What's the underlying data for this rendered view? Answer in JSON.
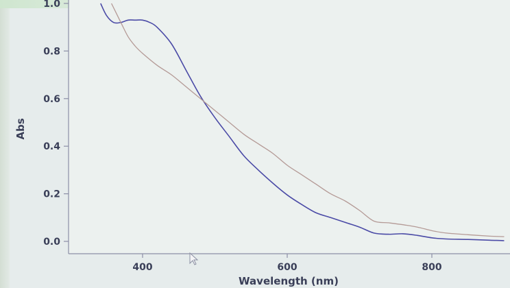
{
  "chart_data": {
    "type": "line",
    "title": "",
    "xlabel": "Wavelength (nm)",
    "ylabel": "Abs",
    "xlim": [
      300,
      900
    ],
    "ylim": [
      0.0,
      1.0
    ],
    "x_ticks": [
      400,
      600,
      800
    ],
    "y_ticks": [
      "0.0",
      "0.2",
      "0.4",
      "0.6",
      "0.8",
      "1.0"
    ],
    "grid": false,
    "legend": "none",
    "series": [
      {
        "color": "#4a4aa6",
        "x": [
          342,
          350,
          360,
          370,
          380,
          390,
          400,
          410,
          420,
          440,
          460,
          480,
          500,
          520,
          540,
          560,
          580,
          600,
          620,
          640,
          660,
          680,
          700,
          720,
          740,
          760,
          780,
          800,
          820,
          850,
          880,
          900
        ],
        "y": [
          1.0,
          0.95,
          0.92,
          0.92,
          0.93,
          0.93,
          0.93,
          0.92,
          0.9,
          0.83,
          0.72,
          0.61,
          0.52,
          0.44,
          0.36,
          0.3,
          0.245,
          0.195,
          0.155,
          0.12,
          0.1,
          0.08,
          0.06,
          0.035,
          0.03,
          0.032,
          0.025,
          0.015,
          0.01,
          0.008,
          0.005,
          0.003
        ]
      },
      {
        "color": "#b49a96",
        "x": [
          357,
          370,
          380,
          390,
          400,
          420,
          440,
          460,
          480,
          500,
          520,
          540,
          560,
          580,
          600,
          620,
          640,
          660,
          680,
          700,
          720,
          740,
          760,
          780,
          800,
          820,
          850,
          880,
          900
        ],
        "y": [
          1.0,
          0.92,
          0.86,
          0.82,
          0.79,
          0.74,
          0.7,
          0.65,
          0.6,
          0.55,
          0.5,
          0.45,
          0.41,
          0.37,
          0.32,
          0.28,
          0.24,
          0.2,
          0.17,
          0.13,
          0.085,
          0.078,
          0.07,
          0.06,
          0.045,
          0.035,
          0.028,
          0.022,
          0.02
        ]
      }
    ]
  }
}
